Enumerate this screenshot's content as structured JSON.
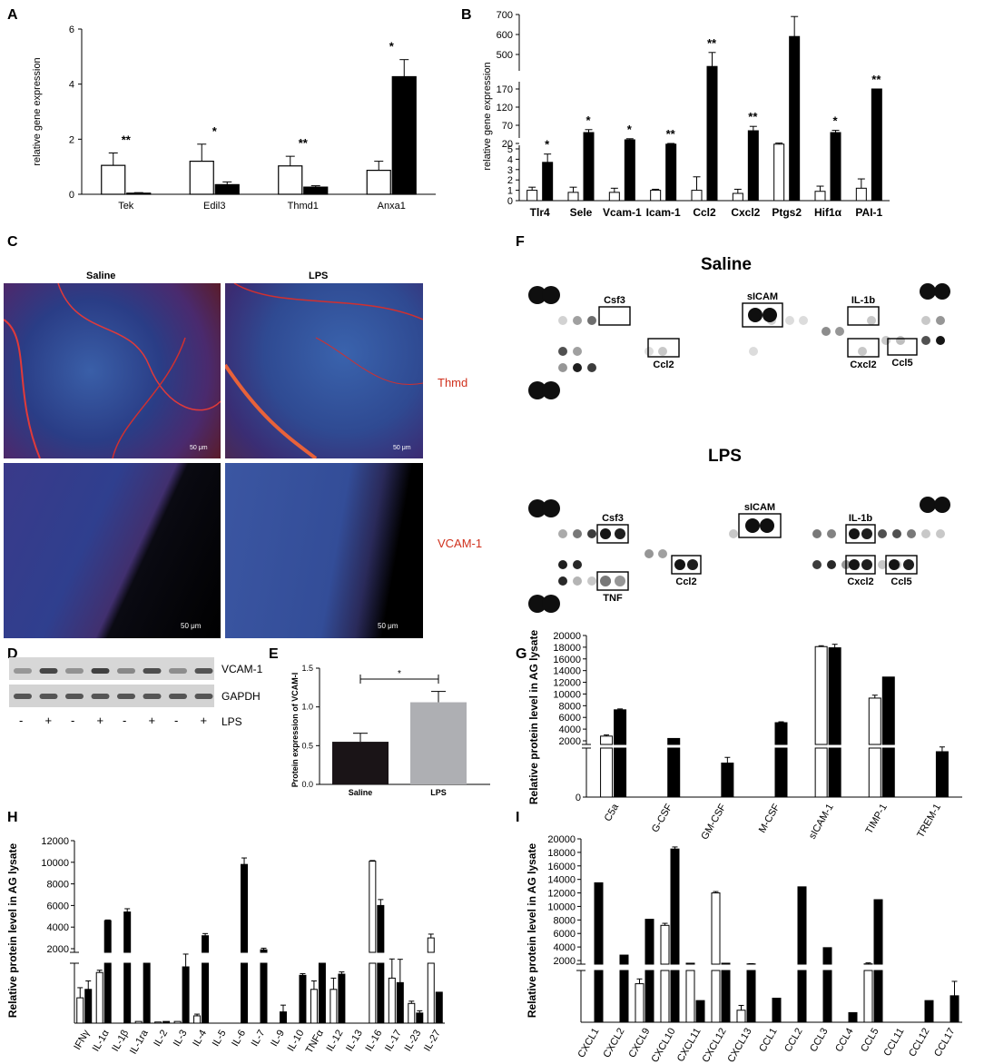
{
  "panel_labels": {
    "A": "A",
    "B": "B",
    "C": "C",
    "D": "D",
    "E": "E",
    "F": "F",
    "G": "G",
    "H": "H",
    "I": "I"
  },
  "chart_data": [
    {
      "id": "A",
      "type": "bar",
      "ylabel": "relative gene expression",
      "categories": [
        "Tek",
        "Edil3",
        "Thmd1",
        "Anxa1"
      ],
      "series": [
        {
          "values": [
            1.05,
            1.2,
            1.03,
            0.87
          ],
          "errors": [
            0.45,
            0.62,
            0.35,
            0.33
          ]
        },
        {
          "values": [
            0.04,
            0.35,
            0.26,
            4.27
          ],
          "errors": [
            0.02,
            0.1,
            0.05,
            0.62
          ]
        }
      ],
      "significance": [
        "**",
        "*",
        "**",
        "*"
      ],
      "ylim": [
        0,
        6
      ],
      "yticks": [
        0,
        2,
        4,
        6
      ]
    },
    {
      "id": "B",
      "type": "bar",
      "ylabel": "relative gene expression",
      "categories": [
        "Tlr4",
        "Sele",
        "Vcam-1",
        "Icam-1",
        "Ccl2",
        "Cxcl2",
        "Ptgs2",
        "Hif1α",
        "PAI-1"
      ],
      "series": [
        {
          "values": [
            1.0,
            0.8,
            0.8,
            1.0,
            1.0,
            0.7,
            18,
            0.9,
            1.2
          ],
          "errors": [
            0.3,
            0.5,
            0.4,
            0.1,
            1.3,
            0.4,
            3,
            0.5,
            0.9
          ]
        },
        {
          "values": [
            3.7,
            50,
            30,
            18,
            440,
            55,
            590,
            50,
            170
          ],
          "errors": [
            0.8,
            8,
            3,
            2,
            70,
            12,
            100,
            6,
            0
          ]
        }
      ],
      "significance": [
        "*",
        "*",
        "*",
        "**",
        "**",
        "**",
        "**",
        "*",
        "**"
      ],
      "yticks": [
        "0",
        "1",
        "2",
        "3",
        "4",
        "5",
        "20",
        "70",
        "120",
        "170",
        "500",
        "600",
        "700"
      ]
    },
    {
      "id": "E",
      "type": "bar",
      "ylabel": "Protein expression of VCAM-I",
      "categories": [
        "Saline",
        "LPS"
      ],
      "values": [
        0.55,
        1.06
      ],
      "errors": [
        0.11,
        0.14
      ],
      "significance": "*",
      "ylim": [
        0,
        1.5
      ],
      "yticks": [
        "0.0",
        "0.5",
        "1.0",
        "1.5"
      ]
    },
    {
      "id": "G",
      "type": "bar",
      "ylabel": "Relative protein level in AG lysate",
      "categories": [
        "C5a",
        "G-CSF",
        "GM-CSF",
        "M-CSF",
        "sICAM-1",
        "TIMP-1",
        "TREM-1"
      ],
      "series": [
        {
          "values": [
            2800,
            null,
            null,
            null,
            18100,
            9300,
            null
          ],
          "errors": [
            200,
            0,
            0,
            0,
            150,
            500,
            0
          ]
        },
        {
          "values": [
            7300,
            2400,
            600,
            5100,
            17900,
            12900,
            800
          ],
          "errors": [
            150,
            0,
            100,
            150,
            600,
            0,
            150
          ]
        }
      ],
      "yticks": [
        "0",
        "2000",
        "4000",
        "6000",
        "8000",
        "10000",
        "12000",
        "14000",
        "16000",
        "18000",
        "20000"
      ]
    },
    {
      "id": "H",
      "type": "bar",
      "ylabel": "Relative protein level in AG lysate",
      "categories": [
        "IFNγ",
        "IL-1α",
        "IL-1β",
        "IL-1ra",
        "IL-2",
        "IL-3",
        "IL-4",
        "IL-5",
        "IL-6",
        "IL-7",
        "IL-9",
        "IL-10",
        "TNFα",
        "IL-12",
        "IL-13",
        "IL-16",
        "IL-17",
        "IL-23",
        "IL-27"
      ],
      "series": [
        {
          "values": [
            450,
            900,
            0,
            30,
            20,
            30,
            130,
            0,
            0,
            0,
            0,
            0,
            600,
            600,
            0,
            10100,
            800,
            350,
            3000
          ],
          "errors": [
            180,
            40,
            0,
            0,
            0,
            0,
            30,
            0,
            0,
            0,
            0,
            0,
            150,
            200,
            0,
            60,
            250,
            40,
            350
          ]
        },
        {
          "values": [
            600,
            4600,
            5400,
            1500,
            30,
            1000,
            3200,
            0,
            9800,
            1900,
            200,
            850,
            1500,
            870,
            0,
            6000,
            720,
            180,
            550
          ],
          "errors": [
            150,
            60,
            300,
            0,
            0,
            500,
            200,
            0,
            600,
            150,
            120,
            30,
            0,
            40,
            0,
            550,
            300,
            40,
            0
          ]
        }
      ],
      "yticks": [
        "2000",
        "4000",
        "6000",
        "8000",
        "10000",
        "12000"
      ]
    },
    {
      "id": "I",
      "type": "bar",
      "ylabel": "Relative protein level in AG lysate",
      "categories": [
        "CXCL1",
        "CXCL2",
        "CXCL9",
        "CXCL10",
        "CXCL11",
        "CXCL12",
        "CXCL13",
        "CCL1",
        "CCL2",
        "CCL3",
        "CCL4",
        "CCL5",
        "CCL11",
        "CCL12",
        "CCL17"
      ],
      "series": [
        {
          "values": [
            0,
            0,
            800,
            7200,
            1600,
            12000,
            250,
            0,
            0,
            0,
            0,
            1500,
            0,
            0,
            0
          ],
          "errors": [
            0,
            0,
            100,
            300,
            0,
            200,
            100,
            0,
            0,
            0,
            0,
            150,
            0,
            0,
            0
          ]
        },
        {
          "values": [
            13500,
            2800,
            8100,
            18500,
            450,
            1600,
            1500,
            500,
            12900,
            3900,
            200,
            11000,
            0,
            450,
            550
          ],
          "errors": [
            0,
            0,
            0,
            300,
            0,
            0,
            40,
            0,
            0,
            0,
            0,
            0,
            0,
            0,
            300
          ]
        }
      ],
      "yticks": [
        "2000",
        "4000",
        "6000",
        "8000",
        "10000",
        "12000",
        "14000",
        "16000",
        "18000",
        "20000"
      ]
    }
  ],
  "C": {
    "col1": "Saline",
    "col2": "LPS",
    "row1": "Thmd",
    "row2": "VCAM-1",
    "scale": "50 μm"
  },
  "D": {
    "band1": "VCAM-1",
    "band2": "GAPDH",
    "lanes": [
      "-",
      "+",
      "-",
      "+",
      "-",
      "+",
      "-",
      "+"
    ],
    "lane_label": "LPS"
  },
  "F": {
    "saline_title": "Saline",
    "lps_title": "LPS",
    "saline_boxes": [
      "Csf3",
      "sICAM",
      "IL-1b",
      "Ccl2",
      "Cxcl2",
      "Ccl5"
    ],
    "lps_boxes": [
      "Csf3",
      "sICAM",
      "IL-1b",
      "Ccl2",
      "Cxcl2",
      "Ccl5",
      "TNF"
    ]
  }
}
